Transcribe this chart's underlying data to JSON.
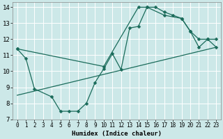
{
  "xlabel": "Humidex (Indice chaleur)",
  "bg_color": "#cce8e8",
  "grid_color": "#ffffff",
  "line_color": "#1a6b5a",
  "xlim": [
    -0.5,
    23.5
  ],
  "ylim": [
    7,
    14.3
  ],
  "xticks": [
    0,
    1,
    2,
    3,
    4,
    5,
    6,
    7,
    8,
    9,
    10,
    11,
    12,
    13,
    14,
    15,
    16,
    17,
    18,
    19,
    20,
    21,
    22,
    23
  ],
  "yticks": [
    7,
    8,
    9,
    10,
    11,
    12,
    13,
    14
  ],
  "line1_x": [
    0,
    1,
    2,
    4,
    5,
    6,
    7,
    8,
    9,
    10,
    11,
    12,
    13,
    14,
    15,
    16,
    17,
    18,
    19,
    20,
    21,
    22,
    23
  ],
  "line1_y": [
    11.4,
    10.8,
    8.9,
    8.4,
    7.5,
    7.5,
    7.5,
    8.0,
    9.3,
    10.15,
    11.1,
    10.1,
    12.7,
    12.8,
    14.0,
    14.0,
    13.7,
    13.5,
    13.3,
    12.5,
    12.0,
    12.0,
    12.0
  ],
  "line2_x": [
    0,
    10,
    14,
    15,
    17,
    19,
    20,
    21,
    22,
    23
  ],
  "line2_y": [
    11.4,
    10.3,
    14.0,
    14.0,
    13.5,
    13.3,
    12.5,
    11.5,
    12.0,
    11.5
  ],
  "line3_x": [
    0,
    23
  ],
  "line3_y": [
    8.5,
    11.5
  ]
}
